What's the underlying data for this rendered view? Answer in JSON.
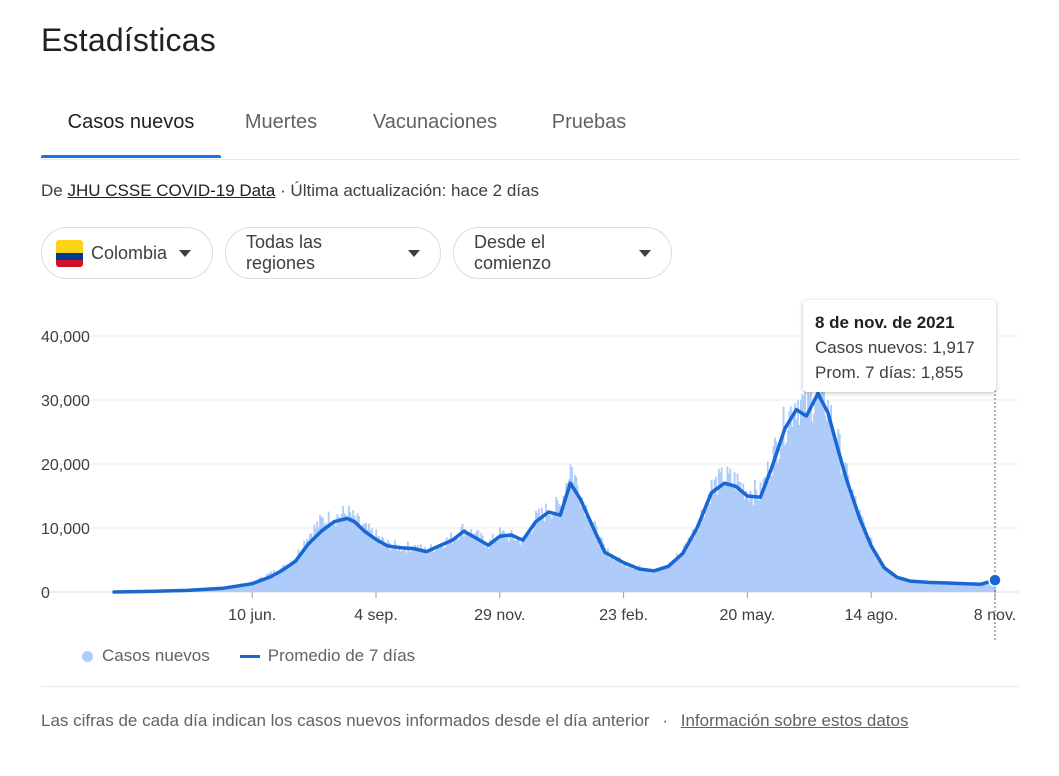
{
  "title": "Estadísticas",
  "tabs": [
    {
      "label": "Casos nuevos",
      "active": true
    },
    {
      "label": "Muertes",
      "active": false
    },
    {
      "label": "Vacunaciones",
      "active": false
    },
    {
      "label": "Pruebas",
      "active": false
    }
  ],
  "source": {
    "prefix": "De",
    "link": "JHU CSSE COVID-19 Data",
    "updated": "· Última actualización: hace 2 días"
  },
  "filters": {
    "country": "Colombia",
    "region": "Todas las regiones",
    "period": "Desde el comienzo"
  },
  "colors": {
    "bars": "#aecbfa",
    "line": "#1967d2",
    "accent": "#1a73e8",
    "flag_yellow": "#fcd116",
    "flag_blue": "#003893",
    "flag_red": "#ce1126"
  },
  "tooltip": {
    "date": "8 de nov. de 2021",
    "cases_label": "Casos nuevos:",
    "cases_value": "1,917",
    "avg_label": "Prom. 7 días:",
    "avg_value": "1,855"
  },
  "legend": {
    "bars": "Casos nuevos",
    "line": "Promedio de 7 días"
  },
  "footnote": {
    "text": "Las cifras de cada día indican los casos nuevos informados desde el día anterior",
    "sep": "·",
    "link": "Información sobre estos datos"
  },
  "chart_data": {
    "type": "area",
    "title": "",
    "xlabel": "",
    "ylabel": "",
    "ylim": [
      0,
      40000
    ],
    "x_range": [
      "2020-03-06",
      "2021-11-08"
    ],
    "y_ticks": [
      {
        "value": 0,
        "label": "0"
      },
      {
        "value": 10000,
        "label": "10,000"
      },
      {
        "value": 20000,
        "label": "20,000"
      },
      {
        "value": 30000,
        "label": "30,000"
      },
      {
        "value": 40000,
        "label": "40,000"
      }
    ],
    "x_ticks": [
      {
        "date": "2020-06-10",
        "label": "10 jun."
      },
      {
        "date": "2020-09-04",
        "label": "4 sep."
      },
      {
        "date": "2020-11-29",
        "label": "29 nov."
      },
      {
        "date": "2021-02-23",
        "label": "23 feb."
      },
      {
        "date": "2021-05-20",
        "label": "20 may."
      },
      {
        "date": "2021-08-14",
        "label": "14 ago."
      },
      {
        "date": "2021-11-08",
        "label": "8 nov."
      }
    ],
    "grid": true,
    "legend_position": "bottom-left",
    "series": [
      {
        "name": "Casos nuevos",
        "kind": "bars",
        "points": [
          [
            "2020-03-06",
            0
          ],
          [
            "2020-03-31",
            150
          ],
          [
            "2020-04-26",
            300
          ],
          [
            "2020-05-21",
            700
          ],
          [
            "2020-06-10",
            1500
          ],
          [
            "2020-06-23",
            3000
          ],
          [
            "2020-07-01",
            3800
          ],
          [
            "2020-07-10",
            5500
          ],
          [
            "2020-07-19",
            9000
          ],
          [
            "2020-07-28",
            11200
          ],
          [
            "2020-08-06",
            11800
          ],
          [
            "2020-08-15",
            12500
          ],
          [
            "2020-08-20",
            11500
          ],
          [
            "2020-08-27",
            10000
          ],
          [
            "2020-09-04",
            8800
          ],
          [
            "2020-09-12",
            7500
          ],
          [
            "2020-09-21",
            7000
          ],
          [
            "2020-09-30",
            7200
          ],
          [
            "2020-10-09",
            6500
          ],
          [
            "2020-10-18",
            7500
          ],
          [
            "2020-10-27",
            8600
          ],
          [
            "2020-11-04",
            10000
          ],
          [
            "2020-11-12",
            9000
          ],
          [
            "2020-11-21",
            7600
          ],
          [
            "2020-11-29",
            9200
          ],
          [
            "2020-12-07",
            8700
          ],
          [
            "2020-12-15",
            8000
          ],
          [
            "2020-12-24",
            11500
          ],
          [
            "2021-01-02",
            13000
          ],
          [
            "2021-01-10",
            13500
          ],
          [
            "2021-01-17",
            20000
          ],
          [
            "2021-01-24",
            15500
          ],
          [
            "2021-02-03",
            10000
          ],
          [
            "2021-02-10",
            6500
          ],
          [
            "2021-02-23",
            4500
          ],
          [
            "2021-03-06",
            3800
          ],
          [
            "2021-03-16",
            3200
          ],
          [
            "2021-03-26",
            4200
          ],
          [
            "2021-04-05",
            6500
          ],
          [
            "2021-04-15",
            10500
          ],
          [
            "2021-04-25",
            16500
          ],
          [
            "2021-05-04",
            18000
          ],
          [
            "2021-05-12",
            17500
          ],
          [
            "2021-05-20",
            16000
          ],
          [
            "2021-05-29",
            15500
          ],
          [
            "2021-06-06",
            21000
          ],
          [
            "2021-06-15",
            26500
          ],
          [
            "2021-06-23",
            30500
          ],
          [
            "2021-06-30",
            29000
          ],
          [
            "2021-07-08",
            32500
          ],
          [
            "2021-07-15",
            29000
          ],
          [
            "2021-07-21",
            24000
          ],
          [
            "2021-07-28",
            18000
          ],
          [
            "2021-08-06",
            12000
          ],
          [
            "2021-08-14",
            7500
          ],
          [
            "2021-08-23",
            4000
          ],
          [
            "2021-09-01",
            2400
          ],
          [
            "2021-09-10",
            1800
          ],
          [
            "2021-09-23",
            1500
          ],
          [
            "2021-10-06",
            1450
          ],
          [
            "2021-10-19",
            1350
          ],
          [
            "2021-10-29",
            1250
          ],
          [
            "2021-11-08",
            1917
          ]
        ]
      },
      {
        "name": "Promedio de 7 días",
        "kind": "line",
        "points": [
          [
            "2020-03-06",
            0
          ],
          [
            "2020-03-31",
            100
          ],
          [
            "2020-04-26",
            250
          ],
          [
            "2020-05-21",
            600
          ],
          [
            "2020-06-10",
            1300
          ],
          [
            "2020-06-23",
            2400
          ],
          [
            "2020-07-01",
            3400
          ],
          [
            "2020-07-10",
            4800
          ],
          [
            "2020-07-19",
            7500
          ],
          [
            "2020-07-28",
            9500
          ],
          [
            "2020-08-06",
            11000
          ],
          [
            "2020-08-15",
            11500
          ],
          [
            "2020-08-20",
            11000
          ],
          [
            "2020-08-27",
            9500
          ],
          [
            "2020-09-04",
            8200
          ],
          [
            "2020-09-12",
            7200
          ],
          [
            "2020-09-21",
            6900
          ],
          [
            "2020-09-30",
            6800
          ],
          [
            "2020-10-09",
            6300
          ],
          [
            "2020-10-18",
            7200
          ],
          [
            "2020-10-27",
            8100
          ],
          [
            "2020-11-04",
            9500
          ],
          [
            "2020-11-12",
            8500
          ],
          [
            "2020-11-21",
            7300
          ],
          [
            "2020-11-29",
            8700
          ],
          [
            "2020-12-07",
            8900
          ],
          [
            "2020-12-15",
            8100
          ],
          [
            "2020-12-24",
            11000
          ],
          [
            "2021-01-02",
            12500
          ],
          [
            "2021-01-10",
            12000
          ],
          [
            "2021-01-17",
            17000
          ],
          [
            "2021-01-24",
            14500
          ],
          [
            "2021-02-03",
            9500
          ],
          [
            "2021-02-10",
            6200
          ],
          [
            "2021-02-23",
            4600
          ],
          [
            "2021-03-06",
            3600
          ],
          [
            "2021-03-16",
            3300
          ],
          [
            "2021-03-26",
            4000
          ],
          [
            "2021-04-05",
            6000
          ],
          [
            "2021-04-15",
            10000
          ],
          [
            "2021-04-25",
            15500
          ],
          [
            "2021-05-04",
            17000
          ],
          [
            "2021-05-12",
            16500
          ],
          [
            "2021-05-20",
            15000
          ],
          [
            "2021-05-29",
            14800
          ],
          [
            "2021-06-06",
            19500
          ],
          [
            "2021-06-15",
            25500
          ],
          [
            "2021-06-23",
            28500
          ],
          [
            "2021-06-30",
            27500
          ],
          [
            "2021-07-08",
            31000
          ],
          [
            "2021-07-15",
            28000
          ],
          [
            "2021-07-21",
            23000
          ],
          [
            "2021-07-28",
            17500
          ],
          [
            "2021-08-06",
            11500
          ],
          [
            "2021-08-14",
            7200
          ],
          [
            "2021-08-23",
            3800
          ],
          [
            "2021-09-01",
            2300
          ],
          [
            "2021-09-10",
            1700
          ],
          [
            "2021-09-23",
            1500
          ],
          [
            "2021-10-06",
            1400
          ],
          [
            "2021-10-19",
            1300
          ],
          [
            "2021-10-29",
            1200
          ],
          [
            "2021-11-08",
            1855
          ]
        ]
      }
    ]
  }
}
